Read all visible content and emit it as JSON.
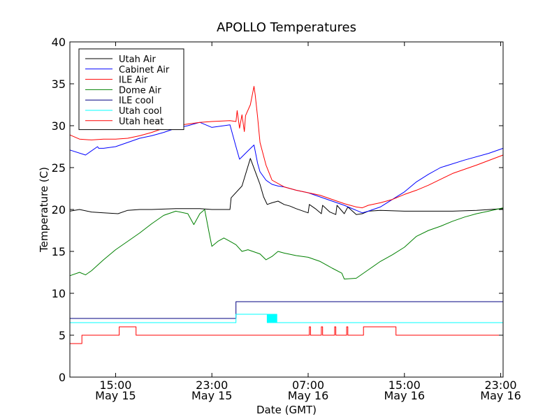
{
  "chart_data": {
    "type": "line",
    "title": "APOLLO Temperatures",
    "xlabel": "Date (GMT)",
    "ylabel": "Temperature (C)",
    "xlim": [
      11.2,
      47.2
    ],
    "ylim": [
      0,
      40
    ],
    "grid": false,
    "legend_position": "top-left",
    "x_unit": "hours since May 15 00:00 GMT",
    "yticks": [
      0,
      5,
      10,
      15,
      20,
      25,
      30,
      35,
      40
    ],
    "ytick_labels": [
      "0",
      "5",
      "10",
      "15",
      "20",
      "25",
      "30",
      "35",
      "40"
    ],
    "xticks": [
      {
        "x": 15,
        "time": "15:00",
        "date": "May 15"
      },
      {
        "x": 23,
        "time": "23:00",
        "date": "May 15"
      },
      {
        "x": 31,
        "time": "07:00",
        "date": "May 16"
      },
      {
        "x": 39,
        "time": "15:00",
        "date": "May 16"
      },
      {
        "x": 47,
        "time": "23:00",
        "date": "May 16"
      }
    ],
    "series": [
      {
        "name": "Utah Air",
        "color": "#000000",
        "step": false,
        "x": [
          11.2,
          12,
          13,
          14,
          15.2,
          16,
          17,
          18,
          20,
          22,
          23,
          24.5,
          24.6,
          25.5,
          26.2,
          27,
          27.3,
          27.6,
          28,
          28.5,
          29,
          29.5,
          30,
          31,
          31.1,
          31.6,
          32.1,
          32.2,
          32.8,
          33.3,
          33.4,
          34,
          34.3,
          35,
          35.5,
          36,
          37,
          39,
          41,
          43,
          45,
          47.2
        ],
        "y": [
          19.8,
          20,
          19.7,
          19.6,
          19.5,
          19.9,
          20,
          20,
          20.1,
          20.1,
          20,
          20,
          21.4,
          22.8,
          26.1,
          23,
          21.5,
          20.6,
          20.8,
          21,
          20.6,
          20.4,
          20.1,
          19.6,
          20.6,
          20.1,
          19.5,
          20.5,
          19.7,
          19.4,
          20.5,
          19.5,
          20.3,
          19.4,
          19.5,
          19.8,
          19.9,
          19.8,
          19.8,
          19.8,
          19.9,
          20.1
        ]
      },
      {
        "name": "Cabinet Air",
        "color": "#0000ff",
        "step": false,
        "x": [
          11.2,
          12.5,
          13.5,
          13.6,
          14,
          15,
          16,
          17,
          18,
          19,
          20,
          21,
          22,
          23,
          24,
          24.5,
          25,
          25.3,
          26,
          26.5,
          26.8,
          27,
          27.5,
          28,
          28.5,
          29,
          30,
          31,
          32,
          33,
          34,
          35,
          35.5,
          36,
          37,
          38,
          39,
          40,
          41,
          42,
          44,
          46,
          47.2
        ],
        "y": [
          27.1,
          26.5,
          27.5,
          27.3,
          27.3,
          27.5,
          28,
          28.5,
          28.8,
          29.2,
          29.7,
          30,
          30.4,
          29.8,
          30,
          30.1,
          27.5,
          26,
          27,
          27.7,
          25.5,
          24.5,
          23.5,
          23,
          22.8,
          22.7,
          22.3,
          22,
          21.5,
          21,
          20.5,
          19.9,
          19.6,
          19.8,
          20.3,
          21.2,
          22.1,
          23.3,
          24.2,
          25,
          25.9,
          26.7,
          27.3
        ]
      },
      {
        "name": "ILE Air",
        "color": "#ff0000",
        "step": false,
        "x": [
          11.2,
          12,
          13,
          14,
          15,
          16,
          17,
          18,
          19,
          20,
          21,
          22,
          23,
          24.5,
          25,
          25.1,
          25.3,
          25.5,
          25.7,
          25.8,
          26.2,
          26.5,
          26.6,
          26.8,
          27,
          27.5,
          28,
          29,
          30,
          31,
          32,
          33,
          34,
          35,
          35.5,
          36,
          37,
          38,
          39,
          40,
          41,
          42,
          43,
          45,
          47.2
        ],
        "y": [
          28.9,
          28.4,
          28.3,
          28.4,
          28.4,
          28.5,
          28.8,
          29.2,
          29.7,
          30,
          30.2,
          30.4,
          30.5,
          30.6,
          30.5,
          31.8,
          29.7,
          31.3,
          29.3,
          31.2,
          32.5,
          34.7,
          33.7,
          31,
          28,
          25.3,
          23.5,
          22.7,
          22.3,
          22,
          21.7,
          21.2,
          20.7,
          20.3,
          20.2,
          20.5,
          20.8,
          21.2,
          21.8,
          22.3,
          22.9,
          23.6,
          24.3,
          25.3,
          26.5
        ]
      },
      {
        "name": "Dome Air",
        "color": "#008000",
        "step": false,
        "x": [
          11.2,
          12,
          12.5,
          13,
          14,
          15,
          16,
          17,
          18,
          19,
          20,
          21,
          21.5,
          22,
          22.4,
          22.8,
          23,
          23.5,
          24,
          24.5,
          25,
          25.5,
          26,
          27,
          27.5,
          28,
          28.5,
          29,
          30,
          31,
          32,
          33,
          33.8,
          34,
          35,
          36,
          37,
          38,
          39,
          40,
          41,
          42,
          43,
          44,
          45,
          46,
          47.2
        ],
        "y": [
          12.1,
          12.5,
          12.2,
          12.7,
          14,
          15.2,
          16.2,
          17.2,
          18.3,
          19.3,
          19.8,
          19.5,
          18.2,
          19.5,
          20,
          17,
          15.6,
          16.2,
          16.6,
          16.2,
          15.8,
          15,
          15.2,
          14.7,
          14,
          14.4,
          15,
          14.8,
          14.5,
          14.3,
          13.8,
          13,
          12.4,
          11.7,
          11.8,
          12.8,
          13.8,
          14.6,
          15.5,
          16.8,
          17.5,
          18,
          18.6,
          19.1,
          19.5,
          19.8,
          20.2
        ]
      },
      {
        "name": "ILE cool",
        "color": "#000080",
        "step": true,
        "x": [
          11.2,
          25,
          47.2
        ],
        "y": [
          7,
          9,
          9
        ]
      },
      {
        "name": "Utah cool",
        "color": "#00ffff",
        "step": true,
        "x": [
          11.2,
          25,
          27.6,
          27.65,
          27.7,
          27.75,
          27.8,
          27.85,
          27.9,
          27.95,
          28,
          28.05,
          28.1,
          28.15,
          28.2,
          28.25,
          28.3,
          28.35,
          28.4,
          47.2
        ],
        "y": [
          6.5,
          7.5,
          6.5,
          7.5,
          6.5,
          7.5,
          6.5,
          7.5,
          6.5,
          7.5,
          6.5,
          7.5,
          6.5,
          7.5,
          6.5,
          7.5,
          6.5,
          7.5,
          6.5,
          6.5
        ]
      },
      {
        "name": "Utah heat",
        "color": "#ff0000",
        "step": true,
        "x": [
          11.2,
          12.2,
          15.3,
          16.7,
          31.1,
          31.2,
          32.1,
          32.2,
          33.2,
          33.3,
          34.2,
          34.3,
          35.6,
          38.3,
          47.2
        ],
        "y": [
          4,
          5,
          6,
          5,
          6,
          5,
          6,
          5,
          6,
          5,
          6,
          5,
          6,
          5,
          5
        ]
      }
    ]
  }
}
